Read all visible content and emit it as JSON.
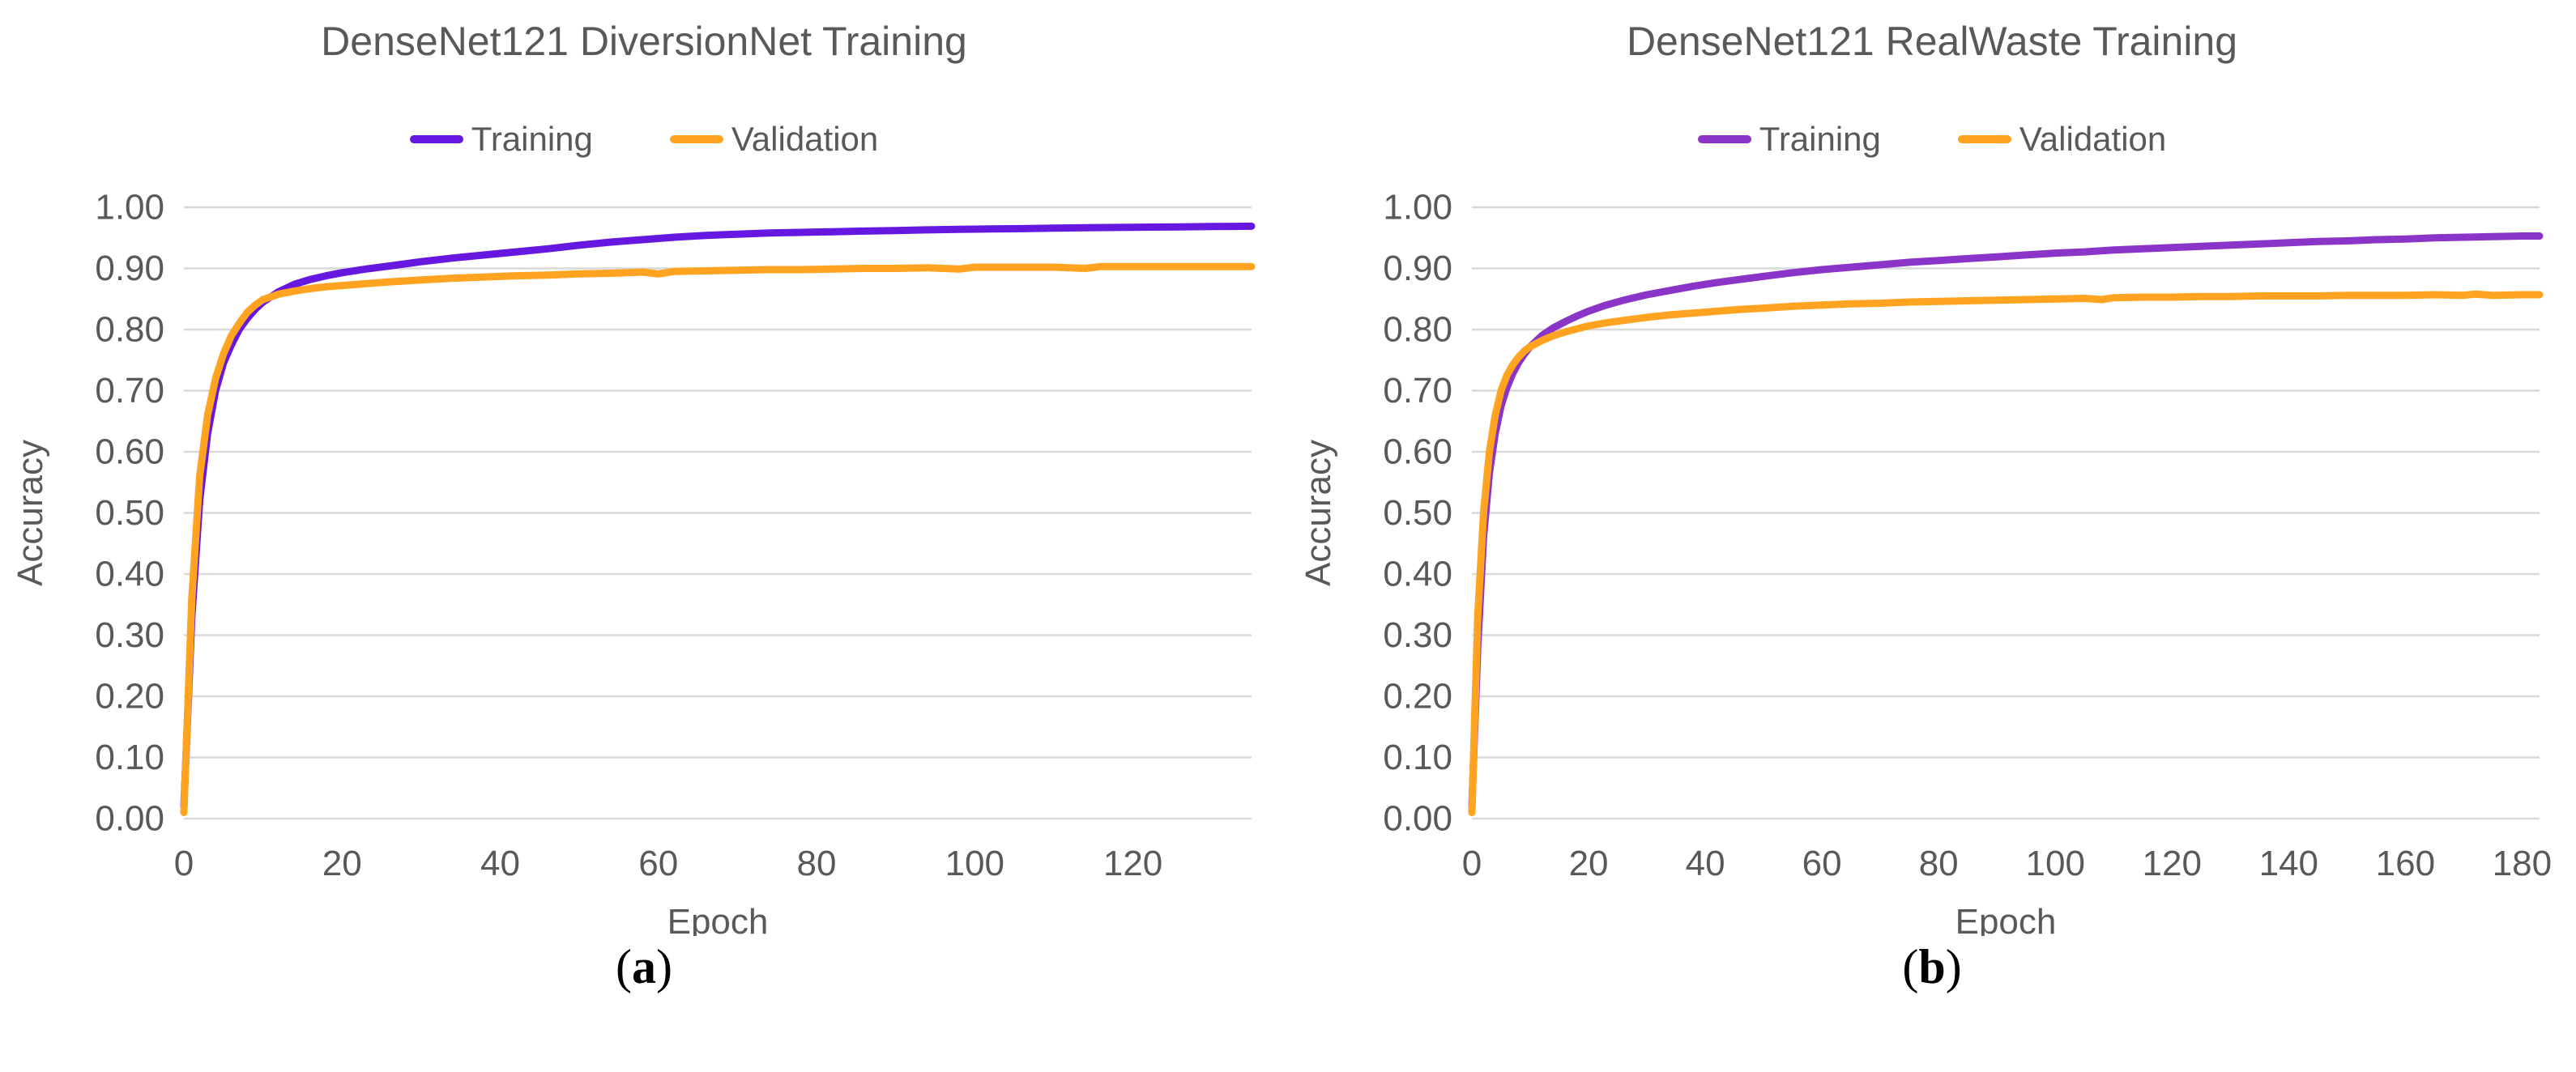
{
  "page": {
    "background": "#ffffff",
    "colors": {
      "text_gray": "#595959",
      "gridline": "#d9d9d9",
      "training_left": "#6618e0",
      "training_right": "#8b35c8",
      "validation": "#ffa320"
    }
  },
  "chart_data": [
    {
      "type": "line",
      "title": "DenseNet121 DiversionNet Training",
      "xlabel": "Epoch",
      "ylabel": "Accuracy",
      "xlim": [
        0,
        135
      ],
      "ylim": [
        0,
        1.0
      ],
      "grid": true,
      "legend_position": "top",
      "xticks": [
        0,
        20,
        40,
        60,
        80,
        100,
        120
      ],
      "yticks": [
        "0.00",
        "0.10",
        "0.20",
        "0.30",
        "0.40",
        "0.50",
        "0.60",
        "0.70",
        "0.80",
        "0.90",
        "1.00"
      ],
      "caption": {
        "open": "(",
        "letter": "a",
        "close": ")"
      },
      "series": [
        {
          "name": "Training",
          "color": "#6618e0",
          "points": [
            [
              0,
              0.02
            ],
            [
              1,
              0.33
            ],
            [
              2,
              0.52
            ],
            [
              3,
              0.63
            ],
            [
              4,
              0.7
            ],
            [
              5,
              0.745
            ],
            [
              6,
              0.775
            ],
            [
              7,
              0.8
            ],
            [
              8,
              0.818
            ],
            [
              9,
              0.833
            ],
            [
              10,
              0.845
            ],
            [
              12,
              0.862
            ],
            [
              14,
              0.874
            ],
            [
              16,
              0.882
            ],
            [
              18,
              0.888
            ],
            [
              20,
              0.893
            ],
            [
              23,
              0.899
            ],
            [
              26,
              0.904
            ],
            [
              30,
              0.911
            ],
            [
              34,
              0.917
            ],
            [
              38,
              0.922
            ],
            [
              42,
              0.927
            ],
            [
              46,
              0.932
            ],
            [
              50,
              0.938
            ],
            [
              54,
              0.943
            ],
            [
              58,
              0.947
            ],
            [
              62,
              0.951
            ],
            [
              66,
              0.954
            ],
            [
              70,
              0.956
            ],
            [
              74,
              0.958
            ],
            [
              78,
              0.959
            ],
            [
              82,
              0.96
            ],
            [
              86,
              0.961
            ],
            [
              90,
              0.962
            ],
            [
              94,
              0.963
            ],
            [
              98,
              0.964
            ],
            [
              102,
              0.9645
            ],
            [
              106,
              0.965
            ],
            [
              110,
              0.966
            ],
            [
              114,
              0.9665
            ],
            [
              118,
              0.967
            ],
            [
              122,
              0.9675
            ],
            [
              126,
              0.968
            ],
            [
              130,
              0.9685
            ],
            [
              135,
              0.969
            ]
          ]
        },
        {
          "name": "Validation",
          "color": "#ffa320",
          "points": [
            [
              0,
              0.01
            ],
            [
              1,
              0.36
            ],
            [
              2,
              0.56
            ],
            [
              3,
              0.66
            ],
            [
              4,
              0.72
            ],
            [
              5,
              0.76
            ],
            [
              6,
              0.79
            ],
            [
              7,
              0.81
            ],
            [
              8,
              0.828
            ],
            [
              9,
              0.84
            ],
            [
              10,
              0.849
            ],
            [
              12,
              0.858
            ],
            [
              14,
              0.863
            ],
            [
              16,
              0.867
            ],
            [
              18,
              0.87
            ],
            [
              20,
              0.872
            ],
            [
              23,
              0.875
            ],
            [
              26,
              0.878
            ],
            [
              30,
              0.881
            ],
            [
              34,
              0.884
            ],
            [
              38,
              0.886
            ],
            [
              42,
              0.888
            ],
            [
              46,
              0.889
            ],
            [
              50,
              0.891
            ],
            [
              54,
              0.892
            ],
            [
              58,
              0.894
            ],
            [
              60,
              0.891
            ],
            [
              62,
              0.895
            ],
            [
              66,
              0.896
            ],
            [
              70,
              0.897
            ],
            [
              74,
              0.898
            ],
            [
              78,
              0.898
            ],
            [
              82,
              0.899
            ],
            [
              86,
              0.9
            ],
            [
              90,
              0.9
            ],
            [
              94,
              0.901
            ],
            [
              98,
              0.899
            ],
            [
              100,
              0.902
            ],
            [
              106,
              0.902
            ],
            [
              110,
              0.902
            ],
            [
              114,
              0.9
            ],
            [
              116,
              0.903
            ],
            [
              122,
              0.903
            ],
            [
              126,
              0.903
            ],
            [
              130,
              0.903
            ],
            [
              135,
              0.903
            ]
          ]
        }
      ]
    },
    {
      "type": "line",
      "title": "DenseNet121 RealWaste Training",
      "xlabel": "Epoch",
      "ylabel": "Accuracy",
      "xlim": [
        0,
        183
      ],
      "ylim": [
        0,
        1.0
      ],
      "grid": true,
      "legend_position": "top",
      "xticks": [
        0,
        20,
        40,
        60,
        80,
        100,
        120,
        140,
        160,
        180
      ],
      "yticks": [
        "0.00",
        "0.10",
        "0.20",
        "0.30",
        "0.40",
        "0.50",
        "0.60",
        "0.70",
        "0.80",
        "0.90",
        "1.00"
      ],
      "caption": {
        "open": "(",
        "letter": "b",
        "close": ")"
      },
      "series": [
        {
          "name": "Training",
          "color": "#8b35c8",
          "points": [
            [
              0,
              0.02
            ],
            [
              1,
              0.28
            ],
            [
              2,
              0.46
            ],
            [
              3,
              0.565
            ],
            [
              4,
              0.63
            ],
            [
              5,
              0.675
            ],
            [
              6,
              0.705
            ],
            [
              7,
              0.728
            ],
            [
              8,
              0.746
            ],
            [
              9,
              0.76
            ],
            [
              10,
              0.772
            ],
            [
              12,
              0.79
            ],
            [
              14,
              0.803
            ],
            [
              16,
              0.813
            ],
            [
              18,
              0.822
            ],
            [
              20,
              0.83
            ],
            [
              23,
              0.84
            ],
            [
              26,
              0.848
            ],
            [
              30,
              0.857
            ],
            [
              34,
              0.864
            ],
            [
              38,
              0.871
            ],
            [
              42,
              0.877
            ],
            [
              46,
              0.882
            ],
            [
              50,
              0.887
            ],
            [
              55,
              0.893
            ],
            [
              60,
              0.898
            ],
            [
              65,
              0.902
            ],
            [
              70,
              0.906
            ],
            [
              75,
              0.91
            ],
            [
              80,
              0.913
            ],
            [
              85,
              0.916
            ],
            [
              90,
              0.919
            ],
            [
              95,
              0.922
            ],
            [
              100,
              0.925
            ],
            [
              105,
              0.927
            ],
            [
              110,
              0.93
            ],
            [
              115,
              0.932
            ],
            [
              120,
              0.934
            ],
            [
              125,
              0.936
            ],
            [
              130,
              0.938
            ],
            [
              135,
              0.94
            ],
            [
              140,
              0.942
            ],
            [
              145,
              0.944
            ],
            [
              150,
              0.945
            ],
            [
              155,
              0.947
            ],
            [
              160,
              0.948
            ],
            [
              165,
              0.95
            ],
            [
              170,
              0.951
            ],
            [
              175,
              0.952
            ],
            [
              180,
              0.953
            ],
            [
              183,
              0.953
            ]
          ]
        },
        {
          "name": "Validation",
          "color": "#ffa320",
          "points": [
            [
              0,
              0.01
            ],
            [
              1,
              0.33
            ],
            [
              2,
              0.5
            ],
            [
              3,
              0.6
            ],
            [
              4,
              0.66
            ],
            [
              5,
              0.7
            ],
            [
              6,
              0.725
            ],
            [
              7,
              0.742
            ],
            [
              8,
              0.755
            ],
            [
              9,
              0.765
            ],
            [
              10,
              0.772
            ],
            [
              12,
              0.782
            ],
            [
              14,
              0.79
            ],
            [
              16,
              0.796
            ],
            [
              18,
              0.801
            ],
            [
              20,
              0.806
            ],
            [
              23,
              0.811
            ],
            [
              26,
              0.815
            ],
            [
              30,
              0.82
            ],
            [
              34,
              0.824
            ],
            [
              38,
              0.827
            ],
            [
              42,
              0.83
            ],
            [
              46,
              0.833
            ],
            [
              50,
              0.835
            ],
            [
              55,
              0.838
            ],
            [
              60,
              0.84
            ],
            [
              65,
              0.842
            ],
            [
              70,
              0.843
            ],
            [
              75,
              0.845
            ],
            [
              80,
              0.846
            ],
            [
              85,
              0.847
            ],
            [
              90,
              0.848
            ],
            [
              95,
              0.849
            ],
            [
              100,
              0.85
            ],
            [
              105,
              0.851
            ],
            [
              108,
              0.849
            ],
            [
              110,
              0.852
            ],
            [
              115,
              0.853
            ],
            [
              120,
              0.853
            ],
            [
              125,
              0.854
            ],
            [
              130,
              0.854
            ],
            [
              135,
              0.855
            ],
            [
              140,
              0.855
            ],
            [
              145,
              0.855
            ],
            [
              150,
              0.856
            ],
            [
              155,
              0.856
            ],
            [
              160,
              0.856
            ],
            [
              165,
              0.857
            ],
            [
              170,
              0.856
            ],
            [
              172,
              0.858
            ],
            [
              175,
              0.856
            ],
            [
              180,
              0.857
            ],
            [
              183,
              0.857
            ]
          ]
        }
      ]
    }
  ]
}
